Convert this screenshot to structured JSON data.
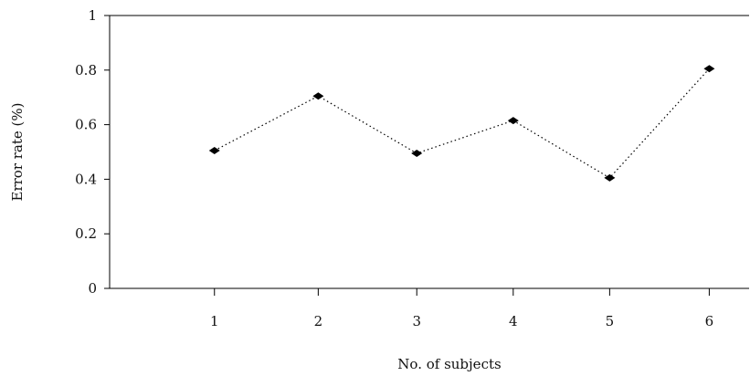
{
  "chart_data": {
    "type": "line",
    "title": "",
    "xlabel": "No. of subjects",
    "ylabel": "Error rate (%)",
    "xlim": [
      0.0,
      6.1
    ],
    "ylim": [
      0,
      1
    ],
    "x_ticks": [
      "1",
      "2",
      "3",
      "4",
      "5",
      "6"
    ],
    "y_ticks": [
      "0",
      "0.2",
      "0.4",
      "0.6",
      "0.8",
      "1"
    ],
    "grid": false,
    "marker": "diamond",
    "line_style": "dotted",
    "series": [
      {
        "x": [
          1,
          1.99,
          2.93,
          3.85,
          4.77,
          5.72
        ],
        "y": [
          0.505,
          0.705,
          0.495,
          0.615,
          0.405,
          0.805
        ]
      }
    ]
  }
}
